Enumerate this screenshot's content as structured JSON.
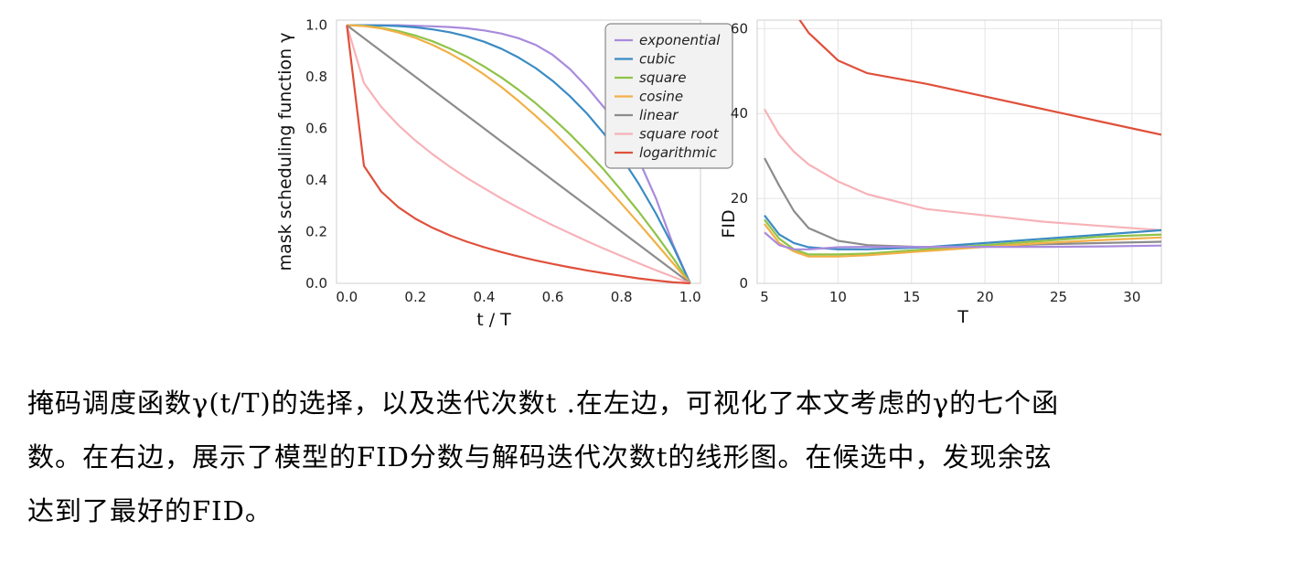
{
  "chart_data": [
    {
      "type": "line",
      "xlabel": "t / T",
      "ylabel": "mask scheduling function γ",
      "xlim": [
        -0.03,
        1.03
      ],
      "ylim": [
        0,
        1.02
      ],
      "xticks": [
        "0.0",
        "0.2",
        "0.4",
        "0.6",
        "0.8",
        "1.0"
      ],
      "yticks": [
        "0.0",
        "0.2",
        "0.4",
        "0.6",
        "0.8",
        "1.0"
      ],
      "grid": false,
      "legend_position": "top-right",
      "x": [
        0,
        0.05,
        0.1,
        0.15,
        0.2,
        0.25,
        0.3,
        0.35,
        0.4,
        0.45,
        0.5,
        0.55,
        0.6,
        0.65,
        0.7,
        0.75,
        0.8,
        0.85,
        0.9,
        0.95,
        1.0
      ],
      "series": [
        {
          "name": "exponential",
          "color": "#a98bdc",
          "values": [
            1.0,
            1.0,
            1.0,
            1.0,
            0.998,
            0.996,
            0.993,
            0.988,
            0.98,
            0.968,
            0.95,
            0.924,
            0.885,
            0.83,
            0.76,
            0.68,
            0.6,
            0.48,
            0.33,
            0.15,
            0.0
          ]
        },
        {
          "name": "cubic",
          "color": "#3b8bc4",
          "values": [
            1.0,
            1.0,
            0.999,
            0.997,
            0.992,
            0.984,
            0.973,
            0.957,
            0.936,
            0.909,
            0.875,
            0.834,
            0.784,
            0.725,
            0.657,
            0.578,
            0.488,
            0.386,
            0.271,
            0.143,
            0.0
          ]
        },
        {
          "name": "square",
          "color": "#8fc348",
          "values": [
            1.0,
            0.998,
            0.99,
            0.978,
            0.96,
            0.938,
            0.91,
            0.878,
            0.84,
            0.798,
            0.75,
            0.698,
            0.64,
            0.578,
            0.51,
            0.438,
            0.36,
            0.278,
            0.19,
            0.098,
            0.0
          ]
        },
        {
          "name": "cosine",
          "color": "#f2b048",
          "values": [
            1.0,
            0.997,
            0.988,
            0.972,
            0.951,
            0.924,
            0.891,
            0.853,
            0.809,
            0.761,
            0.707,
            0.649,
            0.588,
            0.522,
            0.454,
            0.383,
            0.309,
            0.233,
            0.156,
            0.078,
            0.0
          ]
        },
        {
          "name": "linear",
          "color": "#8c8c8c",
          "values": [
            1.0,
            0.95,
            0.9,
            0.85,
            0.8,
            0.75,
            0.7,
            0.65,
            0.6,
            0.55,
            0.5,
            0.45,
            0.4,
            0.35,
            0.3,
            0.25,
            0.2,
            0.15,
            0.1,
            0.05,
            0.0
          ]
        },
        {
          "name": "square root",
          "color": "#f7b2b8",
          "values": [
            1.0,
            0.776,
            0.684,
            0.613,
            0.553,
            0.5,
            0.452,
            0.408,
            0.368,
            0.329,
            0.293,
            0.258,
            0.225,
            0.194,
            0.163,
            0.134,
            0.106,
            0.078,
            0.051,
            0.025,
            0.0
          ]
        },
        {
          "name": "logarithmic",
          "color": "#e0503b",
          "values": [
            1.0,
            0.455,
            0.356,
            0.295,
            0.25,
            0.215,
            0.186,
            0.161,
            0.14,
            0.121,
            0.104,
            0.089,
            0.075,
            0.062,
            0.05,
            0.039,
            0.029,
            0.019,
            0.011,
            0.004,
            0.0
          ]
        }
      ]
    },
    {
      "type": "line",
      "xlabel": "T",
      "ylabel": "FID",
      "xlim": [
        4.5,
        32
      ],
      "ylim": [
        0,
        62
      ],
      "xticks": [
        "5",
        "10",
        "15",
        "20",
        "25",
        "30"
      ],
      "yticks": [
        "0",
        "20",
        "40",
        "60"
      ],
      "grid": true,
      "x": [
        5,
        6,
        7,
        8,
        10,
        12,
        16,
        20,
        24,
        28,
        32
      ],
      "series": [
        {
          "name": "logarithmic",
          "color": "#e0503b",
          "values": [
            null,
            null,
            64,
            59,
            52.5,
            49.5,
            47,
            44,
            41,
            38,
            35
          ]
        },
        {
          "name": "square root",
          "color": "#f7b2b8",
          "values": [
            41,
            35,
            31,
            28,
            24,
            21,
            17.5,
            16,
            14.5,
            13.5,
            12.5
          ]
        },
        {
          "name": "linear",
          "color": "#8c8c8c",
          "values": [
            29.5,
            23,
            17,
            13,
            10,
            9,
            8.5,
            8.8,
            9.2,
            9.5,
            9.8
          ]
        },
        {
          "name": "cubic",
          "color": "#3b8bc4",
          "values": [
            16,
            11.5,
            9.5,
            8.5,
            8,
            8,
            8.5,
            9.5,
            10.5,
            11.5,
            12.5
          ]
        },
        {
          "name": "square",
          "color": "#8fc348",
          "values": [
            15,
            10.5,
            8,
            6.8,
            6.8,
            7,
            8,
            9,
            10,
            11,
            11.5
          ]
        },
        {
          "name": "cosine",
          "color": "#f2b048",
          "values": [
            14,
            9.5,
            7.5,
            6.3,
            6.3,
            6.6,
            7.6,
            8.6,
            9.5,
            10.2,
            10.8
          ]
        },
        {
          "name": "exponential",
          "color": "#a98bdc",
          "values": [
            12,
            9,
            8,
            8,
            8.5,
            8.6,
            8.6,
            8.6,
            8.6,
            8.7,
            8.9
          ]
        }
      ]
    }
  ],
  "caption": {
    "line1": "掩码调度函数γ(t/T)的选择，以及迭代次数t .在左边，可视化了本文考虑的γ的七个函",
    "line2": "数。在右边，展示了模型的FID分数与解码迭代次数t的线形图。在候选中，发现余弦",
    "line3": "达到了最好的FID。"
  }
}
